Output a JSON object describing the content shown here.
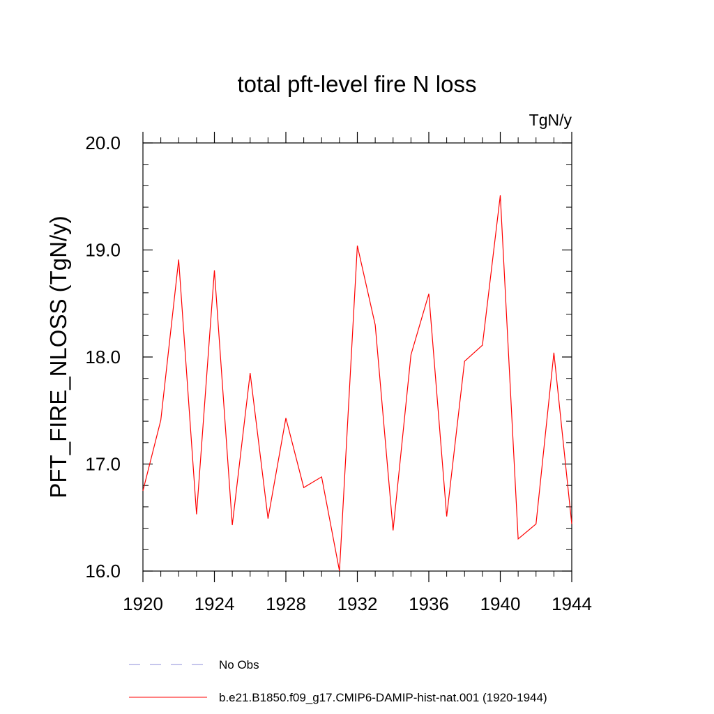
{
  "chart_data": {
    "type": "line",
    "title": "total pft-level fire N loss",
    "units_label": "TgN/y",
    "ylabel": "PFT_FIRE_NLOSS  (TgN/y)",
    "xlabel": "",
    "xlim": [
      1920,
      1944
    ],
    "ylim": [
      16.0,
      20.0
    ],
    "x_ticks": [
      1920,
      1924,
      1928,
      1932,
      1936,
      1940,
      1944
    ],
    "y_ticks": [
      "16.0",
      "17.0",
      "18.0",
      "19.0",
      "20.0"
    ],
    "grid": false,
    "legend_position": "bottom",
    "x": [
      1920,
      1921,
      1922,
      1923,
      1924,
      1925,
      1926,
      1927,
      1928,
      1929,
      1930,
      1931,
      1932,
      1933,
      1934,
      1935,
      1936,
      1937,
      1938,
      1939,
      1940,
      1941,
      1942,
      1943,
      1944
    ],
    "series": [
      {
        "name": "b.e21.B1850.f09_g17.CMIP6-DAMIP-hist-nat.001 (1920-1944)",
        "color": "#ff0000",
        "style": "solid",
        "values": [
          16.75,
          17.41,
          18.91,
          16.53,
          18.81,
          16.43,
          17.85,
          16.49,
          17.43,
          16.78,
          16.88,
          16.0,
          19.04,
          18.3,
          16.38,
          18.02,
          18.59,
          16.51,
          17.96,
          18.11,
          19.51,
          16.3,
          16.44,
          18.04,
          16.44
        ]
      }
    ],
    "legend": [
      {
        "label": "No Obs",
        "color": "#8c8cd9",
        "style": "dashed"
      },
      {
        "label": "b.e21.B1850.f09_g17.CMIP6-DAMIP-hist-nat.001 (1920-1944)",
        "color": "#ff0000",
        "style": "solid"
      }
    ]
  }
}
